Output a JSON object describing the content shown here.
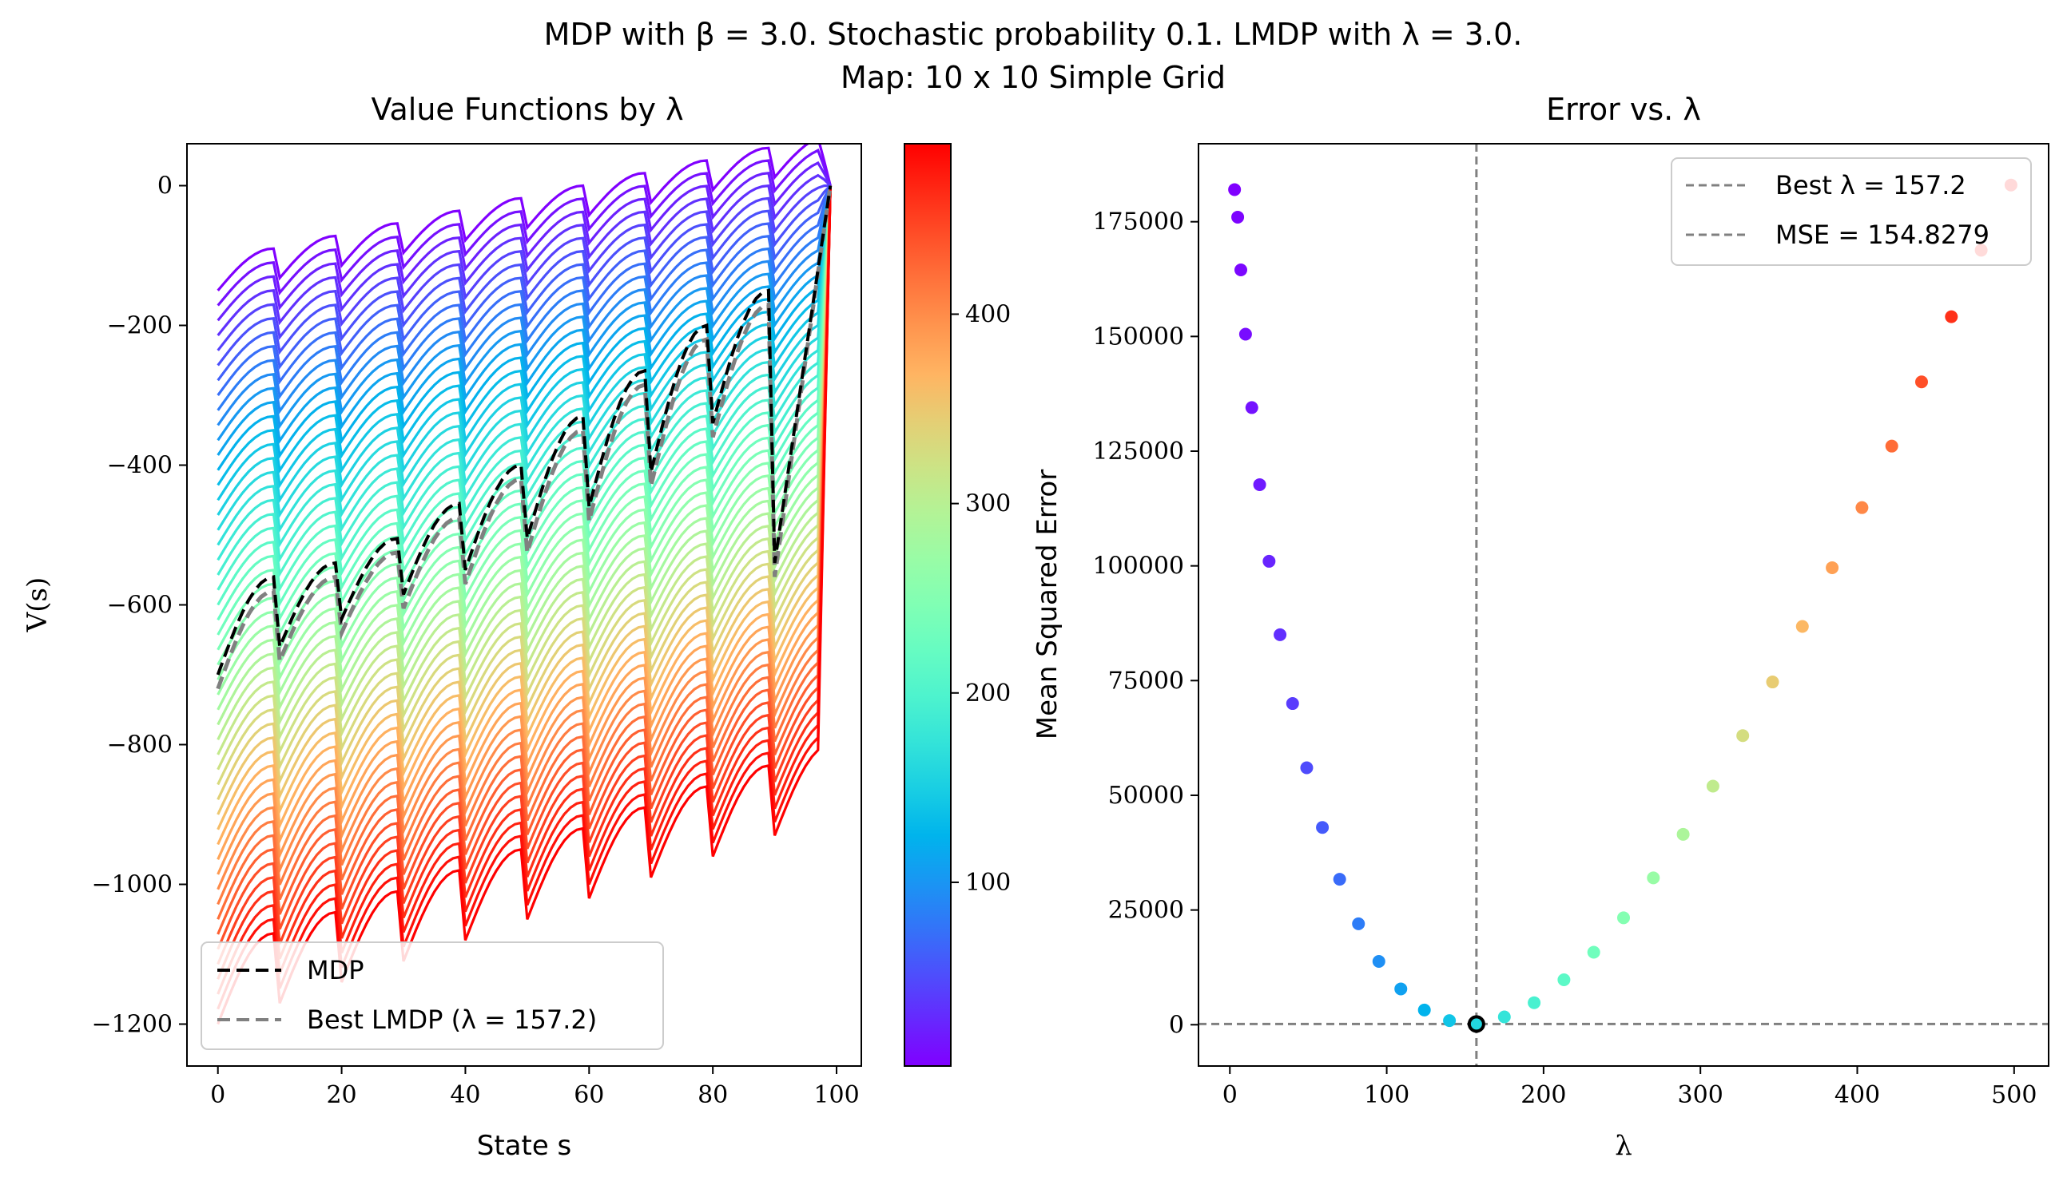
{
  "suptitle": {
    "line1": "MDP with β = 3.0. Stochastic probability 0.1. LMDP with λ = 3.0.",
    "line2": "Map: 10 x 10 Simple Grid"
  },
  "left": {
    "title": "Value Functions by λ",
    "xlabel": "State s",
    "ylabel": "V(s)",
    "xticks": [
      "0",
      "20",
      "40",
      "60",
      "80",
      "100"
    ],
    "yticks": [
      "0",
      "−200",
      "−400",
      "−600",
      "−800",
      "−1000",
      "−1200"
    ],
    "legend": [
      "MDP",
      "Best LMDP (λ = 157.2)"
    ]
  },
  "colorbar": {
    "ticks": [
      "100",
      "200",
      "300",
      "400"
    ]
  },
  "right": {
    "title": "Error vs. λ",
    "xlabel": "λ",
    "ylabel": "Mean Squared Error",
    "xticks": [
      "0",
      "100",
      "200",
      "300",
      "400",
      "500"
    ],
    "yticks": [
      "0",
      "25000",
      "50000",
      "75000",
      "100000",
      "125000",
      "150000",
      "175000"
    ],
    "legend": [
      "Best λ = 157.2",
      "MSE = 154.8279"
    ]
  },
  "chart_data": [
    {
      "type": "line",
      "title": "Value Functions by λ",
      "xlabel": "State s",
      "ylabel": "V(s)",
      "xlim": [
        -5,
        104
      ],
      "ylim": [
        -1260,
        60
      ],
      "lambda_range": [
        3,
        490
      ],
      "colormap": "rainbow",
      "num_curves": 50,
      "states": 100,
      "row_length": 10,
      "goal_value": 0,
      "min_value": -1200,
      "series": [
        {
          "name": "MDP",
          "style": "dashed",
          "color": "#000000"
        },
        {
          "name": "Best LMDP (λ = 157.2)",
          "style": "dashed",
          "color": "#808080",
          "lambda": 157.2
        }
      ],
      "mdp_row_peaks": [
        -560,
        -540,
        -505,
        -455,
        -400,
        -330,
        -265,
        -200,
        -150
      ],
      "mdp_row_troughs": [
        -700,
        -660,
        -620,
        -585,
        -550,
        -505,
        -460,
        -410,
        -340
      ],
      "legend": "lower-left"
    },
    {
      "type": "scatter",
      "title": "Error vs. λ",
      "xlabel": "λ",
      "ylabel": "Mean Squared Error",
      "xlim": [
        -20,
        522
      ],
      "ylim": [
        -9000,
        192000
      ],
      "x": [
        3,
        5,
        7,
        10,
        14,
        19,
        25,
        32,
        40,
        49,
        59,
        70,
        82,
        95,
        109,
        124,
        140,
        157.2,
        175,
        194,
        213,
        232,
        251,
        270,
        289,
        308,
        327,
        346,
        365,
        384,
        403,
        422,
        441,
        460,
        479,
        498
      ],
      "y": [
        182000,
        176000,
        164500,
        150500,
        134500,
        117700,
        101000,
        85000,
        70000,
        56000,
        43000,
        31700,
        22000,
        13800,
        7800,
        3200,
        900,
        155,
        1700,
        4800,
        9800,
        15800,
        23300,
        32000,
        41500,
        52000,
        63000,
        74700,
        86800,
        99600,
        112700,
        126100,
        140100,
        154300,
        168800,
        183000
      ],
      "best_lambda": 157.2,
      "best_mse": 154.8279,
      "colormap": "rainbow",
      "legend": "top-right"
    }
  ]
}
